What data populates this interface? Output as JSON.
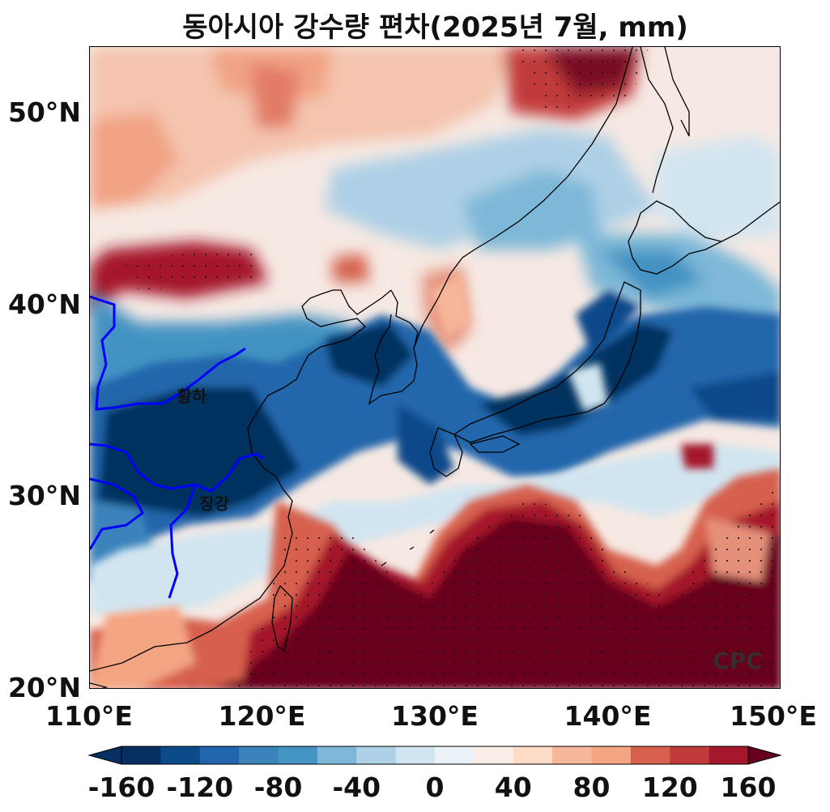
{
  "title": "동아시아 강수량 편차(2025년 7월, mm)",
  "map": {
    "extent": {
      "lon_min": 110,
      "lon_max": 150,
      "lat_min": 20,
      "lat_max": 53.5
    },
    "y_ticks": [
      {
        "label": "20°N",
        "lat": 20
      },
      {
        "label": "30°N",
        "lat": 30
      },
      {
        "label": "40°N",
        "lat": 40
      },
      {
        "label": "50°N",
        "lat": 50
      }
    ],
    "x_ticks": [
      {
        "label": "110°E",
        "lon": 110
      },
      {
        "label": "120°E",
        "lon": 120
      },
      {
        "label": "130°E",
        "lon": 130
      },
      {
        "label": "140°E",
        "lon": 140
      },
      {
        "label": "150°E",
        "lon": 150
      }
    ],
    "river_labels": [
      {
        "text": "황하",
        "lon": 115.9,
        "lat": 35.0
      },
      {
        "text": "장강",
        "lon": 117.2,
        "lat": 29.4
      }
    ],
    "watermark": "CPC",
    "river_color": "#0000ff",
    "coast_color": "#000000"
  },
  "colorbar": {
    "levels": [
      -160,
      -140,
      -120,
      -100,
      -80,
      -60,
      -40,
      -20,
      0,
      20,
      40,
      60,
      80,
      100,
      120,
      140,
      160
    ],
    "colors": [
      "#053061",
      "#0d4a8a",
      "#2166ac",
      "#3a84bb",
      "#4393c3",
      "#7db8d8",
      "#aed0e6",
      "#d1e5f0",
      "#ebf2f7",
      "#f9ede7",
      "#fddbc7",
      "#f6b69a",
      "#f4a582",
      "#d6604d",
      "#c23b3b",
      "#a5172a",
      "#67001f",
      "#67001f"
    ],
    "tick_labels": [
      {
        "label": "-160",
        "value": -160
      },
      {
        "label": "-120",
        "value": -120
      },
      {
        "label": "-80",
        "value": -80
      },
      {
        "label": "-40",
        "value": -40
      },
      {
        "label": "0",
        "value": 0
      },
      {
        "label": "40",
        "value": 40
      },
      {
        "label": "80",
        "value": 80
      },
      {
        "label": "120",
        "value": 120
      },
      {
        "label": "160",
        "value": 160
      }
    ]
  }
}
